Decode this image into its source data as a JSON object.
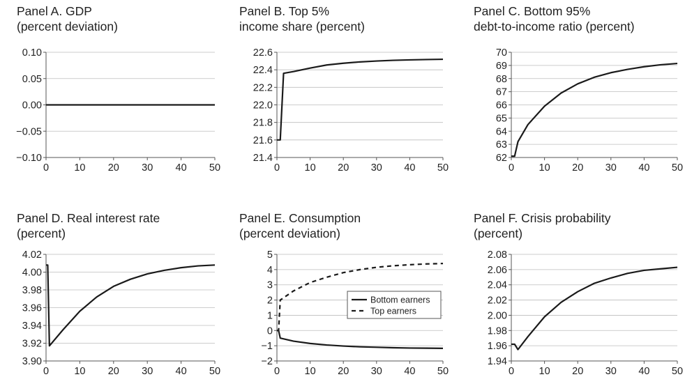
{
  "chart_data": [
    {
      "type": "line",
      "title": [
        "Panel A. GDP",
        "(percent deviation)"
      ],
      "xlim": [
        0,
        50
      ],
      "ylim": [
        -0.1,
        0.1
      ],
      "xticks": [
        "0",
        "10",
        "20",
        "30",
        "40",
        "50"
      ],
      "yticks": [
        "0.10",
        "0.05",
        "0.00",
        "−0.05",
        "−0.10"
      ],
      "yticks_values": [
        0.1,
        0.05,
        0.0,
        -0.05,
        -0.1
      ],
      "grid": true,
      "series": [
        {
          "style": "solid",
          "x": [
            0,
            50
          ],
          "y": [
            0,
            0
          ]
        }
      ]
    },
    {
      "type": "line",
      "title": [
        "Panel B. Top 5%",
        "income share (percent)"
      ],
      "xlim": [
        0,
        50
      ],
      "ylim": [
        21.4,
        22.6
      ],
      "xticks": [
        "0",
        "10",
        "20",
        "30",
        "40",
        "50"
      ],
      "yticks": [
        "22.6",
        "22.4",
        "22.2",
        "22.0",
        "21.8",
        "21.6",
        "21.4"
      ],
      "yticks_values": [
        22.6,
        22.4,
        22.2,
        22.0,
        21.8,
        21.6,
        21.4
      ],
      "grid": true,
      "series": [
        {
          "style": "solid",
          "x": [
            0,
            1,
            2,
            5,
            10,
            15,
            20,
            25,
            30,
            35,
            40,
            45,
            50
          ],
          "y": [
            21.6,
            21.6,
            22.36,
            22.38,
            22.42,
            22.455,
            22.475,
            22.49,
            22.5,
            22.508,
            22.513,
            22.517,
            22.52
          ]
        }
      ]
    },
    {
      "type": "line",
      "title": [
        "Panel C. Bottom 95%",
        "debt-to-income ratio (percent)"
      ],
      "xlim": [
        0,
        50
      ],
      "ylim": [
        62,
        70
      ],
      "xticks": [
        "0",
        "10",
        "20",
        "30",
        "40",
        "50"
      ],
      "yticks": [
        "70",
        "69",
        "68",
        "67",
        "66",
        "65",
        "64",
        "63",
        "62"
      ],
      "yticks_values": [
        70,
        69,
        68,
        67,
        66,
        65,
        64,
        63,
        62
      ],
      "grid": true,
      "series": [
        {
          "style": "solid",
          "x": [
            0,
            1,
            2,
            5,
            10,
            15,
            20,
            25,
            30,
            35,
            40,
            45,
            50
          ],
          "y": [
            62.1,
            62.1,
            63.2,
            64.5,
            65.9,
            66.9,
            67.6,
            68.1,
            68.45,
            68.7,
            68.9,
            69.05,
            69.15
          ]
        }
      ]
    },
    {
      "type": "line",
      "title": [
        "Panel D. Real interest rate",
        "(percent)"
      ],
      "xlim": [
        0,
        50
      ],
      "ylim": [
        3.9,
        4.02
      ],
      "xticks": [
        "0",
        "10",
        "20",
        "30",
        "40",
        "50"
      ],
      "yticks": [
        "4.02",
        "4.00",
        "3.98",
        "3.96",
        "3.94",
        "3.92",
        "3.90"
      ],
      "yticks_values": [
        4.02,
        4.0,
        3.98,
        3.96,
        3.94,
        3.92,
        3.9
      ],
      "grid": true,
      "series": [
        {
          "style": "solid",
          "x": [
            0,
            0.5,
            1,
            5,
            10,
            15,
            20,
            25,
            30,
            35,
            40,
            45,
            50
          ],
          "y": [
            4.008,
            4.008,
            3.917,
            3.935,
            3.956,
            3.972,
            3.984,
            3.992,
            3.998,
            4.002,
            4.005,
            4.007,
            4.008
          ]
        }
      ]
    },
    {
      "type": "line",
      "title": [
        "Panel E. Consumption",
        "(percent deviation)"
      ],
      "xlim": [
        0,
        50
      ],
      "ylim": [
        -2,
        5
      ],
      "xticks": [
        "0",
        "10",
        "20",
        "30",
        "40",
        "50"
      ],
      "yticks": [
        "5",
        "4",
        "3",
        "2",
        "1",
        "0",
        "−1",
        "−2"
      ],
      "yticks_values": [
        5,
        4,
        3,
        2,
        1,
        0,
        -1,
        -2
      ],
      "grid": true,
      "legend": {
        "position": "center-right"
      },
      "series": [
        {
          "name": "Bottom earners",
          "style": "solid",
          "x": [
            0,
            0.5,
            1,
            5,
            10,
            15,
            20,
            25,
            30,
            35,
            40,
            45,
            50
          ],
          "y": [
            0,
            0,
            -0.5,
            -0.7,
            -0.85,
            -0.95,
            -1.02,
            -1.07,
            -1.1,
            -1.13,
            -1.15,
            -1.16,
            -1.17
          ]
        },
        {
          "name": "Top earners",
          "style": "dashed",
          "x": [
            0,
            0.5,
            1,
            5,
            10,
            15,
            20,
            25,
            30,
            35,
            40,
            45,
            50
          ],
          "y": [
            0,
            0,
            2.0,
            2.6,
            3.15,
            3.5,
            3.8,
            4.0,
            4.15,
            4.25,
            4.32,
            4.37,
            4.4
          ]
        }
      ]
    },
    {
      "type": "line",
      "title": [
        "Panel F. Crisis probability",
        "(percent)"
      ],
      "xlim": [
        0,
        50
      ],
      "ylim": [
        1.94,
        2.08
      ],
      "xticks": [
        "0",
        "10",
        "20",
        "30",
        "40",
        "50"
      ],
      "yticks": [
        "2.08",
        "2.06",
        "2.04",
        "2.02",
        "2.00",
        "1.98",
        "1.96",
        "1.94"
      ],
      "yticks_values": [
        2.08,
        2.06,
        2.04,
        2.02,
        2.0,
        1.98,
        1.96,
        1.94
      ],
      "grid": true,
      "series": [
        {
          "style": "solid",
          "x": [
            0,
            1,
            2,
            5,
            10,
            15,
            20,
            25,
            30,
            35,
            40,
            45,
            50
          ],
          "y": [
            1.962,
            1.962,
            1.955,
            1.972,
            1.998,
            2.017,
            2.031,
            2.042,
            2.049,
            2.055,
            2.059,
            2.061,
            2.063
          ]
        }
      ]
    }
  ]
}
